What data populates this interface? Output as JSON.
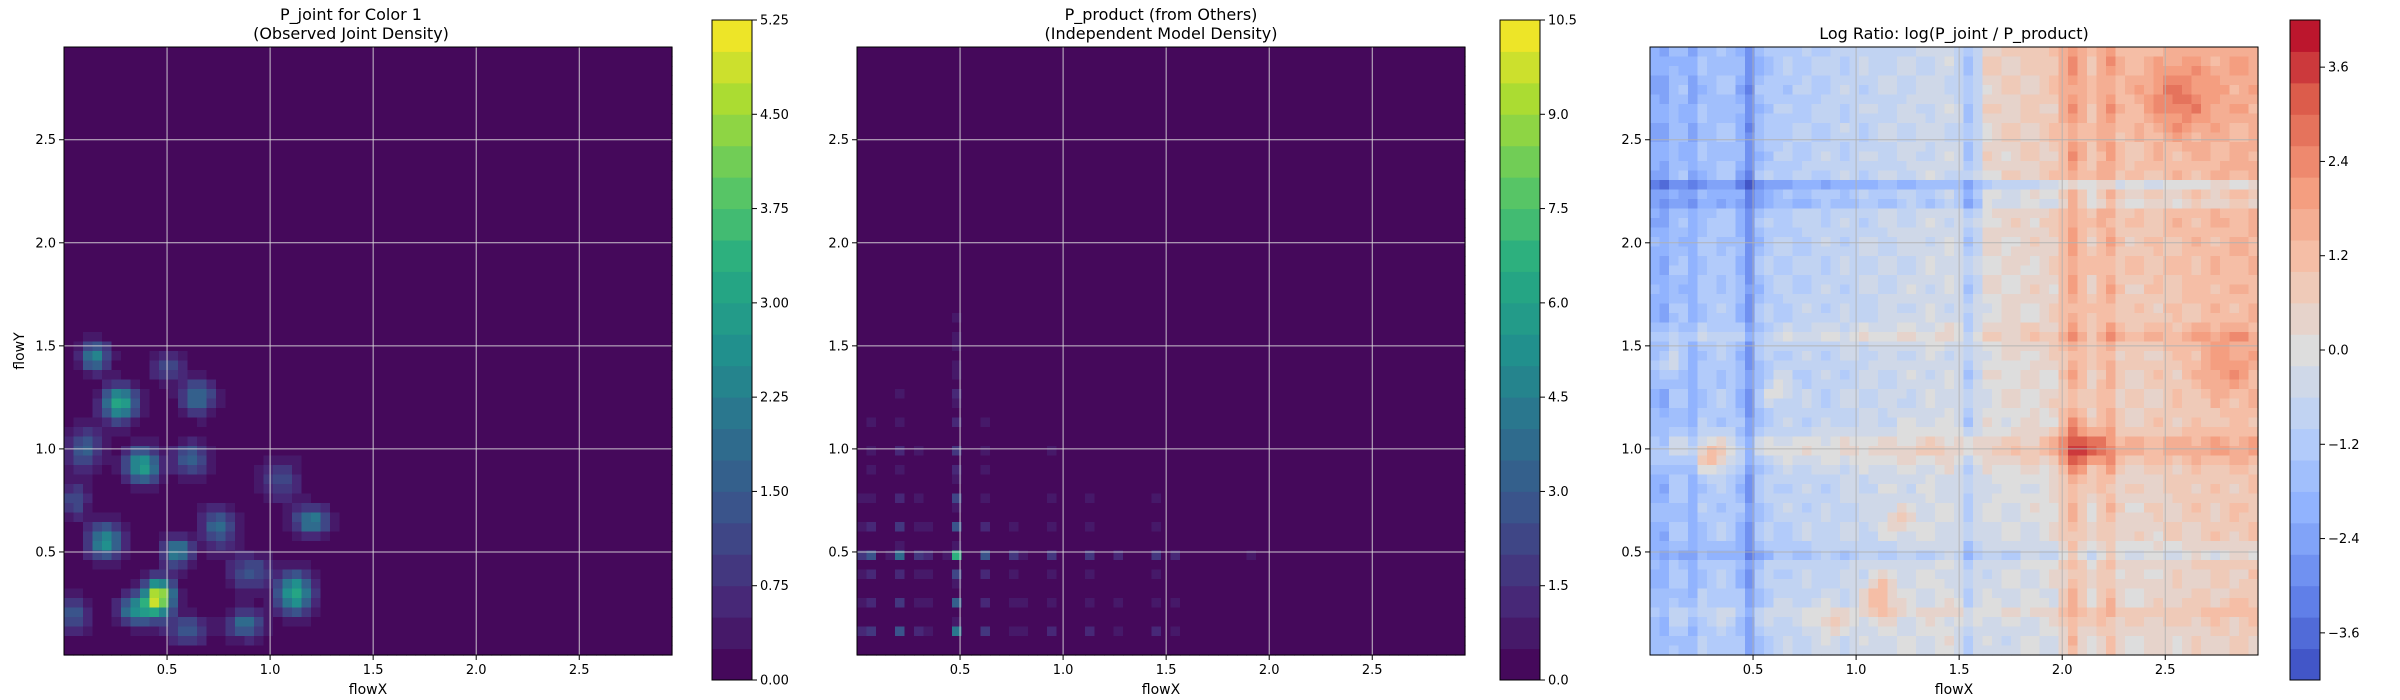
{
  "figure": {
    "background": "#ffffff"
  },
  "chart_data": [
    {
      "type": "heatmap",
      "title_lines": [
        "P_joint for Color 1",
        "(Observed Joint Density)"
      ],
      "xlabel": "flowX",
      "ylabel": "flowY",
      "xlim": [
        0.0,
        2.95
      ],
      "ylim": [
        0.0,
        2.95
      ],
      "xticks": [
        0.5,
        1.0,
        1.5,
        2.0,
        2.5
      ],
      "xtick_labels": [
        "0.5",
        "1.0",
        "1.5",
        "2.0",
        "2.5"
      ],
      "yticks": [
        0.5,
        1.0,
        1.5,
        2.0,
        2.5
      ],
      "ytick_labels": [
        "0.5",
        "1.0",
        "1.5",
        "2.0",
        "2.5"
      ],
      "grid": true,
      "colormap": "viridis",
      "colorbar": {
        "range": [
          0.0,
          5.25
        ],
        "ticks": [
          0.0,
          0.75,
          1.5,
          2.25,
          3.0,
          3.75,
          4.5,
          5.25
        ],
        "tick_labels": [
          "0.00",
          "0.75",
          "1.50",
          "2.25",
          "3.00",
          "3.75",
          "4.50",
          "5.25"
        ],
        "levels": 21
      },
      "field": {
        "kind": "blobs",
        "background": 0.0,
        "peaks": [
          {
            "x": 0.46,
            "y": 0.28,
            "amp": 5.0,
            "sx": 0.05,
            "sy": 0.06
          },
          {
            "x": 0.35,
            "y": 0.22,
            "amp": 2.6,
            "sx": 0.06,
            "sy": 0.05
          },
          {
            "x": 1.12,
            "y": 0.3,
            "amp": 3.2,
            "sx": 0.06,
            "sy": 0.07
          },
          {
            "x": 0.88,
            "y": 0.15,
            "amp": 2.0,
            "sx": 0.06,
            "sy": 0.05
          },
          {
            "x": 0.6,
            "y": 0.12,
            "amp": 1.5,
            "sx": 0.07,
            "sy": 0.05
          },
          {
            "x": 0.2,
            "y": 0.55,
            "amp": 2.7,
            "sx": 0.06,
            "sy": 0.06
          },
          {
            "x": 0.55,
            "y": 0.5,
            "amp": 2.4,
            "sx": 0.05,
            "sy": 0.05
          },
          {
            "x": 0.75,
            "y": 0.62,
            "amp": 1.8,
            "sx": 0.06,
            "sy": 0.07
          },
          {
            "x": 0.38,
            "y": 0.92,
            "amp": 3.0,
            "sx": 0.06,
            "sy": 0.06
          },
          {
            "x": 0.62,
            "y": 0.95,
            "amp": 1.7,
            "sx": 0.06,
            "sy": 0.06
          },
          {
            "x": 0.1,
            "y": 1.0,
            "amp": 1.6,
            "sx": 0.06,
            "sy": 0.07
          },
          {
            "x": 0.27,
            "y": 1.22,
            "amp": 3.3,
            "sx": 0.06,
            "sy": 0.06
          },
          {
            "x": 0.65,
            "y": 1.25,
            "amp": 1.9,
            "sx": 0.06,
            "sy": 0.06
          },
          {
            "x": 0.15,
            "y": 1.45,
            "amp": 2.4,
            "sx": 0.05,
            "sy": 0.05
          },
          {
            "x": 0.5,
            "y": 1.4,
            "amp": 1.2,
            "sx": 0.06,
            "sy": 0.05
          },
          {
            "x": 1.2,
            "y": 0.65,
            "amp": 2.3,
            "sx": 0.06,
            "sy": 0.05
          },
          {
            "x": 1.05,
            "y": 0.85,
            "amp": 1.2,
            "sx": 0.07,
            "sy": 0.07
          },
          {
            "x": 0.05,
            "y": 0.75,
            "amp": 1.3,
            "sx": 0.05,
            "sy": 0.06
          },
          {
            "x": 0.9,
            "y": 0.4,
            "amp": 1.5,
            "sx": 0.07,
            "sy": 0.06
          },
          {
            "x": 0.05,
            "y": 0.2,
            "amp": 1.6,
            "sx": 0.05,
            "sy": 0.06
          }
        ]
      }
    },
    {
      "type": "heatmap",
      "title_lines": [
        "P_product (from Others)",
        "(Independent Model Density)"
      ],
      "xlabel": "flowX",
      "ylabel": "",
      "xlim": [
        0.0,
        2.95
      ],
      "ylim": [
        0.0,
        2.95
      ],
      "xticks": [
        0.5,
        1.0,
        1.5,
        2.0,
        2.5
      ],
      "xtick_labels": [
        "0.5",
        "1.0",
        "1.5",
        "2.0",
        "2.5"
      ],
      "yticks": [
        0.5,
        1.0,
        1.5,
        2.0,
        2.5
      ],
      "ytick_labels": [
        "0.5",
        "1.0",
        "1.5",
        "2.0",
        "2.5"
      ],
      "grid": true,
      "colormap": "viridis",
      "colorbar": {
        "range": [
          0.0,
          10.5
        ],
        "ticks": [
          0.0,
          1.5,
          3.0,
          4.5,
          6.0,
          7.5,
          9.0,
          10.5
        ],
        "tick_labels": [
          "0.0",
          "1.5",
          "3.0",
          "4.5",
          "6.0",
          "7.5",
          "9.0",
          "10.5"
        ],
        "levels": 21
      },
      "field": {
        "kind": "outer",
        "scale": 10.5,
        "marginal_x": [
          {
            "c": 0.48,
            "amp": 1.0,
            "s": 0.02
          },
          {
            "c": 0.05,
            "amp": 0.55,
            "s": 0.02
          },
          {
            "c": 0.2,
            "amp": 0.55,
            "s": 0.02
          },
          {
            "c": 0.32,
            "amp": 0.45,
            "s": 0.02
          },
          {
            "c": 0.62,
            "amp": 0.45,
            "s": 0.02
          },
          {
            "c": 0.78,
            "amp": 0.4,
            "s": 0.02
          },
          {
            "c": 0.95,
            "amp": 0.35,
            "s": 0.02
          },
          {
            "c": 1.12,
            "amp": 0.35,
            "s": 0.02
          },
          {
            "c": 1.28,
            "amp": 0.3,
            "s": 0.02
          },
          {
            "c": 1.45,
            "amp": 0.35,
            "s": 0.02
          },
          {
            "c": 1.55,
            "amp": 0.28,
            "s": 0.02
          },
          {
            "c": 1.9,
            "amp": 0.22,
            "s": 0.02
          },
          {
            "c": 2.25,
            "amp": 0.18,
            "s": 0.02
          }
        ],
        "marginal_y": [
          {
            "c": 0.49,
            "amp": 1.0,
            "s": 0.02
          },
          {
            "c": 0.12,
            "amp": 0.55,
            "s": 0.02
          },
          {
            "c": 0.25,
            "amp": 0.45,
            "s": 0.02
          },
          {
            "c": 0.38,
            "amp": 0.4,
            "s": 0.02
          },
          {
            "c": 0.62,
            "amp": 0.4,
            "s": 0.02
          },
          {
            "c": 0.75,
            "amp": 0.4,
            "s": 0.02
          },
          {
            "c": 0.88,
            "amp": 0.35,
            "s": 0.02
          },
          {
            "c": 1.0,
            "amp": 0.35,
            "s": 0.02
          },
          {
            "c": 1.12,
            "amp": 0.3,
            "s": 0.02
          },
          {
            "c": 1.25,
            "amp": 0.3,
            "s": 0.02
          },
          {
            "c": 1.38,
            "amp": 0.28,
            "s": 0.02
          },
          {
            "c": 1.52,
            "amp": 0.28,
            "s": 0.02
          },
          {
            "c": 1.65,
            "amp": 0.2,
            "s": 0.02
          },
          {
            "c": 1.8,
            "amp": 0.18,
            "s": 0.02
          }
        ]
      }
    },
    {
      "type": "heatmap",
      "title_lines": [
        "Log Ratio: log(P_joint / P_product)"
      ],
      "xlabel": "flowX",
      "ylabel": "",
      "xlim": [
        0.0,
        2.95
      ],
      "ylim": [
        0.0,
        2.95
      ],
      "xticks": [
        0.5,
        1.0,
        1.5,
        2.0,
        2.5
      ],
      "xtick_labels": [
        "0.5",
        "1.0",
        "1.5",
        "2.0",
        "2.5"
      ],
      "yticks": [
        0.5,
        1.0,
        1.5,
        2.0,
        2.5
      ],
      "ytick_labels": [
        "0.5",
        "1.0",
        "1.5",
        "2.0",
        "2.5"
      ],
      "grid": true,
      "colormap": "coolwarm",
      "colorbar": {
        "range": [
          -4.2,
          4.2
        ],
        "ticks": [
          -3.6,
          -2.4,
          -1.2,
          0.0,
          1.2,
          2.4,
          3.6
        ],
        "tick_labels": [
          "−3.6",
          "−2.4",
          "−1.2",
          "0.0",
          "1.2",
          "2.4",
          "3.6"
        ],
        "levels": 21
      },
      "field": {
        "kind": "logratio",
        "trend_x": 0.9,
        "trend_y": 0.35,
        "offset": -0.45,
        "x_stripes": [
          {
            "c": 0.48,
            "amp": -1.6,
            "s": 0.03
          },
          {
            "c": 0.05,
            "amp": -0.9,
            "s": 0.02
          },
          {
            "c": 0.2,
            "amp": -0.7,
            "s": 0.02
          },
          {
            "c": 1.55,
            "amp": -1.0,
            "s": 0.03
          },
          {
            "c": 2.05,
            "amp": 1.2,
            "s": 0.04
          },
          {
            "c": 2.22,
            "amp": 1.0,
            "s": 0.03
          }
        ],
        "y_stripes": [
          {
            "c": 2.27,
            "amp": -1.4,
            "s": 0.02
          },
          {
            "c": 2.2,
            "amp": -0.8,
            "s": 0.02
          },
          {
            "c": 1.0,
            "amp": 0.9,
            "s": 0.05
          },
          {
            "c": 0.5,
            "amp": -0.9,
            "s": 0.02
          },
          {
            "c": 1.55,
            "amp": 0.6,
            "s": 0.03
          },
          {
            "c": 0.2,
            "amp": 0.5,
            "s": 0.03
          }
        ],
        "blobs": [
          {
            "x": 0.3,
            "y": 0.95,
            "amp": 1.8,
            "sx": 0.05,
            "sy": 0.06
          },
          {
            "x": 1.12,
            "y": 0.28,
            "amp": 2.0,
            "sx": 0.05,
            "sy": 0.07
          },
          {
            "x": 2.1,
            "y": 1.0,
            "amp": 1.8,
            "sx": 0.08,
            "sy": 0.08
          },
          {
            "x": 0.08,
            "y": 1.42,
            "amp": 1.5,
            "sx": 0.04,
            "sy": 0.05
          },
          {
            "x": 0.88,
            "y": 0.15,
            "amp": 1.3,
            "sx": 0.05,
            "sy": 0.04
          },
          {
            "x": 2.55,
            "y": 2.7,
            "amp": 1.4,
            "sx": 0.12,
            "sy": 0.12
          },
          {
            "x": 2.8,
            "y": 1.4,
            "amp": 1.1,
            "sx": 0.1,
            "sy": 0.1
          },
          {
            "x": 1.2,
            "y": 0.65,
            "amp": 1.0,
            "sx": 0.05,
            "sy": 0.05
          },
          {
            "x": 0.62,
            "y": 1.28,
            "amp": 1.0,
            "sx": 0.05,
            "sy": 0.05
          }
        ]
      }
    }
  ]
}
